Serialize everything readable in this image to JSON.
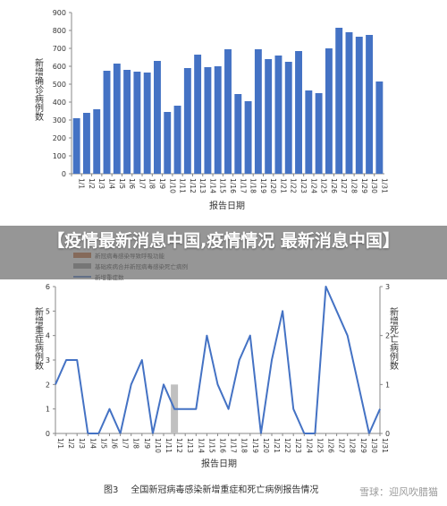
{
  "overlay_title": "【疫情最新消息中国,疫情情况 最新消息中国】",
  "caption": {
    "figure_no": "图3",
    "text": "全国新冠病毒感染新增重症和死亡病例报告情况"
  },
  "watermark": "雪球：迎风吹腊猫",
  "colors": {
    "blue_bar": "#4472c4",
    "blue_line": "#4472c4",
    "death_bar": "#c0c0c0",
    "legend_orange": "#c0632a",
    "legend_gray": "#8c8c8c"
  },
  "chart_data": [
    {
      "type": "bar",
      "ylabel": "新增确诊病例数",
      "xlabel": "报告日期",
      "ylim": [
        0,
        900
      ],
      "yticks": [
        0,
        100,
        200,
        300,
        400,
        500,
        600,
        700,
        800,
        900
      ],
      "categories": [
        "1/1",
        "1/2",
        "1/3",
        "1/4",
        "1/5",
        "1/6",
        "1/7",
        "1/8",
        "1/9",
        "1/10",
        "1/11",
        "1/12",
        "1/13",
        "1/14",
        "1/15",
        "1/16",
        "1/17",
        "1/18",
        "1/19",
        "1/20",
        "1/21",
        "1/22",
        "1/23",
        "1/24",
        "1/25",
        "1/26",
        "1/27",
        "1/28",
        "1/29",
        "1/30",
        "1/31"
      ],
      "values": [
        310,
        340,
        360,
        575,
        615,
        580,
        570,
        565,
        630,
        345,
        380,
        590,
        665,
        595,
        600,
        695,
        445,
        405,
        695,
        640,
        660,
        625,
        685,
        465,
        450,
        700,
        815,
        790,
        765,
        775,
        515
      ]
    },
    {
      "type": "line",
      "legend": [
        "新冠病毒感染导致呼吸功能",
        "基础疾病合并新冠病毒感染死亡病例",
        "新增重症数"
      ],
      "ylabel_left": "新增重症病例数",
      "ylabel_right": "新增死亡病例数",
      "xlabel": "报告日期",
      "ylim_left": [
        0,
        6
      ],
      "ylim_right": [
        0,
        3
      ],
      "yticks_left": [
        0,
        1,
        2,
        3,
        4,
        5,
        6
      ],
      "yticks_right": [
        0,
        1,
        2,
        3
      ],
      "categories": [
        "1/1",
        "1/2",
        "1/3",
        "1/4",
        "1/5",
        "1/6",
        "1/7",
        "1/8",
        "1/9",
        "1/10",
        "1/11",
        "1/12",
        "1/13",
        "1/14",
        "1/15",
        "1/16",
        "1/17",
        "1/18",
        "1/19",
        "1/20",
        "1/21",
        "1/22",
        "1/23",
        "1/24",
        "1/25",
        "1/26",
        "1/27",
        "1/28",
        "1/29",
        "1/30",
        "1/31"
      ],
      "series": [
        {
          "name": "新增重症数",
          "values": [
            2,
            3,
            3,
            0,
            0,
            1,
            0,
            2,
            3,
            0,
            2,
            1,
            1,
            1,
            4,
            2,
            1,
            3,
            4,
            0,
            3,
            5,
            1,
            0,
            0,
            6,
            5,
            4,
            2,
            0,
            1
          ]
        }
      ],
      "death_bars": [
        {
          "name": "基础疾病合并新冠病毒感染死亡病例",
          "values": [
            0,
            0,
            0,
            0,
            0,
            0,
            0,
            0,
            0,
            0,
            0,
            1,
            0,
            0,
            0,
            0,
            0,
            0,
            0,
            0,
            0,
            0,
            0,
            0,
            0,
            0,
            0,
            0,
            0,
            0,
            0
          ]
        }
      ]
    }
  ]
}
